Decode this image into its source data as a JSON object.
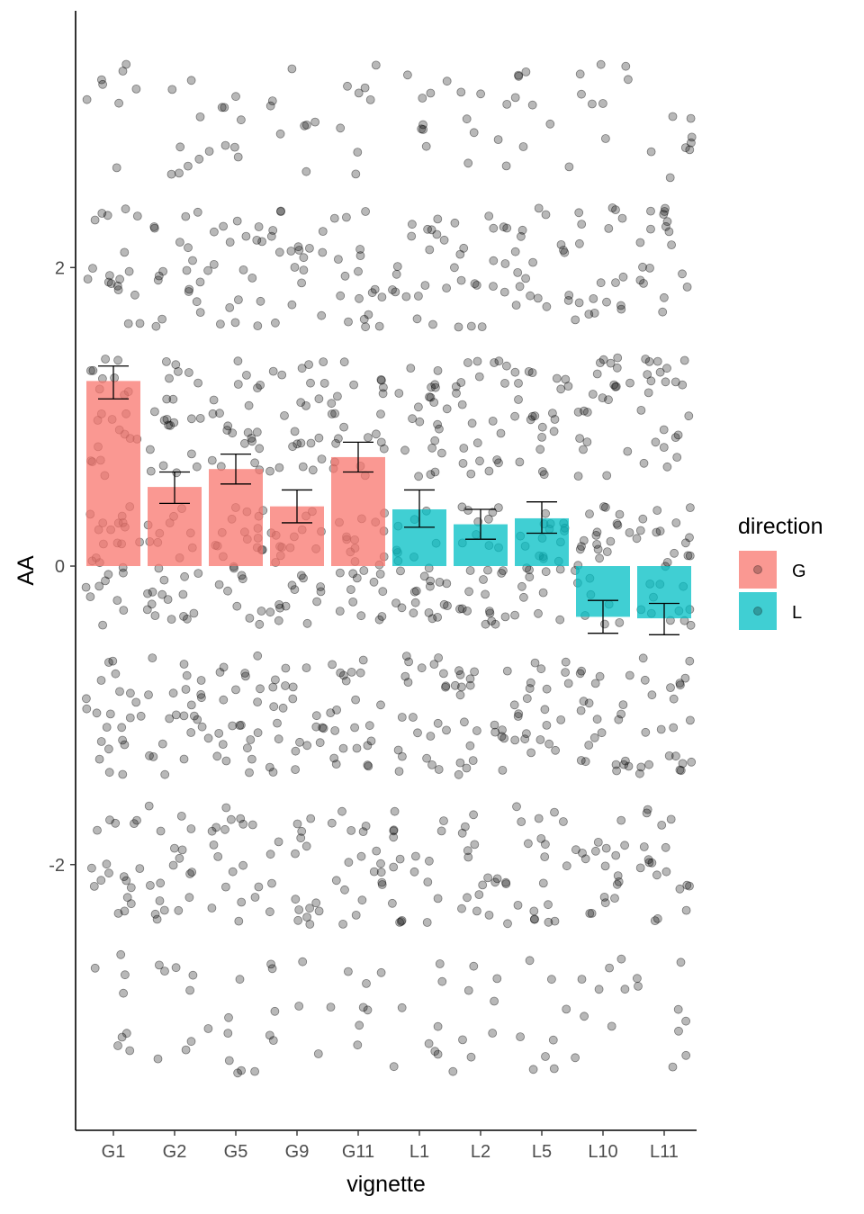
{
  "chart_data": {
    "type": "bar",
    "title": "",
    "xlabel": "vignette",
    "ylabel": "AA",
    "categories": [
      "G1",
      "G2",
      "G5",
      "G9",
      "G11",
      "L1",
      "L2",
      "L5",
      "L10",
      "L11"
    ],
    "groups": [
      "G",
      "G",
      "G",
      "G",
      "G",
      "L",
      "L",
      "L",
      "L",
      "L"
    ],
    "values": [
      1.24,
      0.53,
      0.65,
      0.4,
      0.73,
      0.38,
      0.28,
      0.32,
      -0.34,
      -0.35
    ],
    "error_low": [
      1.12,
      0.42,
      0.55,
      0.29,
      0.63,
      0.26,
      0.18,
      0.22,
      -0.45,
      -0.46
    ],
    "error_high": [
      1.34,
      0.63,
      0.75,
      0.51,
      0.83,
      0.51,
      0.38,
      0.43,
      -0.23,
      -0.25
    ],
    "y_ticks": [
      -2,
      0,
      2
    ],
    "ylim": [
      -3.78,
      3.72
    ],
    "grid": false,
    "legend": {
      "title": "direction",
      "position": "right",
      "entries": [
        {
          "label": "G",
          "color": "#F8766D"
        },
        {
          "label": "L",
          "color": "#00BFC4"
        }
      ]
    },
    "points": {
      "description_levels": [
        -3,
        -2,
        -1,
        0,
        1,
        2,
        3
      ],
      "color": "#000000"
    }
  }
}
